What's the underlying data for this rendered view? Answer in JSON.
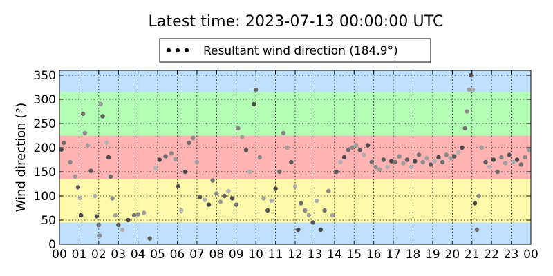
{
  "chart_data": {
    "type": "scatter",
    "title": "Latest time: 2023-07-13 00:00:00 UTC",
    "xlabel": "",
    "ylabel": "Wind direction (°)",
    "legend": {
      "label": "Resultant wind direction (184.9°)",
      "placement": "top-center, above plot"
    },
    "x_unit": "hour of day (UTC)",
    "x_ticks": [
      "00",
      "01",
      "02",
      "03",
      "04",
      "05",
      "06",
      "07",
      "08",
      "09",
      "10",
      "11",
      "12",
      "13",
      "14",
      "15",
      "16",
      "17",
      "18",
      "19",
      "20",
      "21",
      "22",
      "23",
      "00"
    ],
    "y_ticks": [
      "0",
      "50",
      "100",
      "150",
      "200",
      "250",
      "300",
      "350"
    ],
    "xlim": [
      0,
      24
    ],
    "ylim": [
      0,
      360
    ],
    "grid": true,
    "direction_bands": [
      {
        "from": 0,
        "to": 45,
        "color": "#bfe0ff"
      },
      {
        "from": 45,
        "to": 135,
        "color": "#fffaaa"
      },
      {
        "from": 135,
        "to": 225,
        "color": "#ffb3b3"
      },
      {
        "from": 225,
        "to": 315,
        "color": "#b3ffb3"
      },
      {
        "from": 315,
        "to": 360,
        "color": "#bfe0ff"
      }
    ],
    "series": [
      {
        "name": "Resultant wind direction (184.9°)",
        "marker_color": "#000000",
        "points": [
          [
            0.1,
            196
          ],
          [
            0.22,
            210
          ],
          [
            0.55,
            170
          ],
          [
            0.8,
            140
          ],
          [
            0.95,
            118
          ],
          [
            1.05,
            96
          ],
          [
            1.1,
            60
          ],
          [
            1.2,
            270
          ],
          [
            1.3,
            230
          ],
          [
            1.45,
            205
          ],
          [
            1.6,
            152
          ],
          [
            1.8,
            100
          ],
          [
            1.9,
            58
          ],
          [
            2.0,
            40
          ],
          [
            2.05,
            18
          ],
          [
            2.1,
            290
          ],
          [
            2.2,
            265
          ],
          [
            2.4,
            210
          ],
          [
            2.5,
            180
          ],
          [
            2.6,
            140
          ],
          [
            2.7,
            95
          ],
          [
            2.85,
            60
          ],
          [
            3.0,
            40
          ],
          [
            3.2,
            30
          ],
          [
            3.5,
            50
          ],
          [
            3.8,
            60
          ],
          [
            4.0,
            62
          ],
          [
            4.3,
            65
          ],
          [
            4.6,
            12
          ],
          [
            4.9,
            158
          ],
          [
            5.1,
            175
          ],
          [
            5.4,
            182
          ],
          [
            5.7,
            188
          ],
          [
            5.9,
            176
          ],
          [
            6.05,
            120
          ],
          [
            6.2,
            70
          ],
          [
            6.4,
            150
          ],
          [
            6.6,
            210
          ],
          [
            6.8,
            220
          ],
          [
            7.0,
            170
          ],
          [
            7.15,
            98
          ],
          [
            7.4,
            92
          ],
          [
            7.6,
            82
          ],
          [
            7.8,
            132
          ],
          [
            8.0,
            105
          ],
          [
            8.2,
            88
          ],
          [
            8.4,
            100
          ],
          [
            8.6,
            110
          ],
          [
            8.8,
            95
          ],
          [
            9.0,
            82
          ],
          [
            9.1,
            240
          ],
          [
            9.3,
            222
          ],
          [
            9.5,
            195
          ],
          [
            9.7,
            150
          ],
          [
            9.9,
            290
          ],
          [
            10.0,
            320
          ],
          [
            10.2,
            180
          ],
          [
            10.4,
            95
          ],
          [
            10.6,
            70
          ],
          [
            10.8,
            90
          ],
          [
            11.0,
            115
          ],
          [
            11.2,
            150
          ],
          [
            11.4,
            230
          ],
          [
            11.6,
            200
          ],
          [
            11.8,
            170
          ],
          [
            12.0,
            120
          ],
          [
            12.15,
            30
          ],
          [
            12.3,
            85
          ],
          [
            12.5,
            70
          ],
          [
            12.7,
            60
          ],
          [
            12.9,
            45
          ],
          [
            13.1,
            90
          ],
          [
            13.3,
            30
          ],
          [
            13.5,
            70
          ],
          [
            13.7,
            110
          ],
          [
            13.9,
            60
          ],
          [
            14.1,
            150
          ],
          [
            14.3,
            170
          ],
          [
            14.5,
            180
          ],
          [
            14.7,
            195
          ],
          [
            14.9,
            200
          ],
          [
            15.1,
            205
          ],
          [
            15.3,
            195
          ],
          [
            15.5,
            185
          ],
          [
            15.7,
            205
          ],
          [
            15.9,
            170
          ],
          [
            16.1,
            160
          ],
          [
            16.3,
            155
          ],
          [
            16.5,
            175
          ],
          [
            16.7,
            160
          ],
          [
            16.9,
            172
          ],
          [
            17.1,
            170
          ],
          [
            17.3,
            182
          ],
          [
            17.5,
            168
          ],
          [
            17.7,
            175
          ],
          [
            17.9,
            160
          ],
          [
            18.1,
            172
          ],
          [
            18.3,
            185
          ],
          [
            18.5,
            170
          ],
          [
            18.7,
            178
          ],
          [
            18.9,
            165
          ],
          [
            19.1,
            172
          ],
          [
            19.3,
            180
          ],
          [
            19.5,
            170
          ],
          [
            19.7,
            185
          ],
          [
            19.9,
            178
          ],
          [
            20.1,
            182
          ],
          [
            20.3,
            190
          ],
          [
            20.5,
            200
          ],
          [
            20.65,
            240
          ],
          [
            20.75,
            275
          ],
          [
            20.85,
            320
          ],
          [
            20.95,
            350
          ],
          [
            21.05,
            320
          ],
          [
            21.15,
            85
          ],
          [
            21.25,
            30
          ],
          [
            21.35,
            100
          ],
          [
            21.5,
            200
          ],
          [
            21.7,
            170
          ],
          [
            21.9,
            160
          ],
          [
            22.1,
            175
          ],
          [
            22.3,
            150
          ],
          [
            22.5,
            180
          ],
          [
            22.7,
            168
          ],
          [
            22.9,
            185
          ],
          [
            23.1,
            170
          ],
          [
            23.3,
            175
          ],
          [
            23.5,
            165
          ],
          [
            23.7,
            180
          ],
          [
            23.9,
            195
          ]
        ]
      }
    ]
  }
}
